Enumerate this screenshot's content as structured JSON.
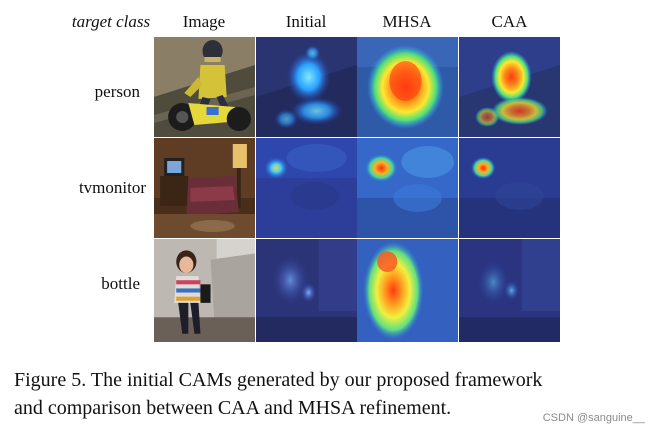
{
  "figure": {
    "columns": {
      "target_class": "target class",
      "image": "Image",
      "initial": "Initial",
      "mhsa": "MHSA",
      "caa": "CAA"
    },
    "rows": [
      {
        "label": "person"
      },
      {
        "label": "tvmonitor"
      },
      {
        "label": "bottle"
      }
    ],
    "caption_line1": "Figure 5. The initial CAMs generated by our proposed framework",
    "caption_line2": "and comparison between CAA and MHSA refinement."
  },
  "watermark": "CSDN @sanguine__"
}
